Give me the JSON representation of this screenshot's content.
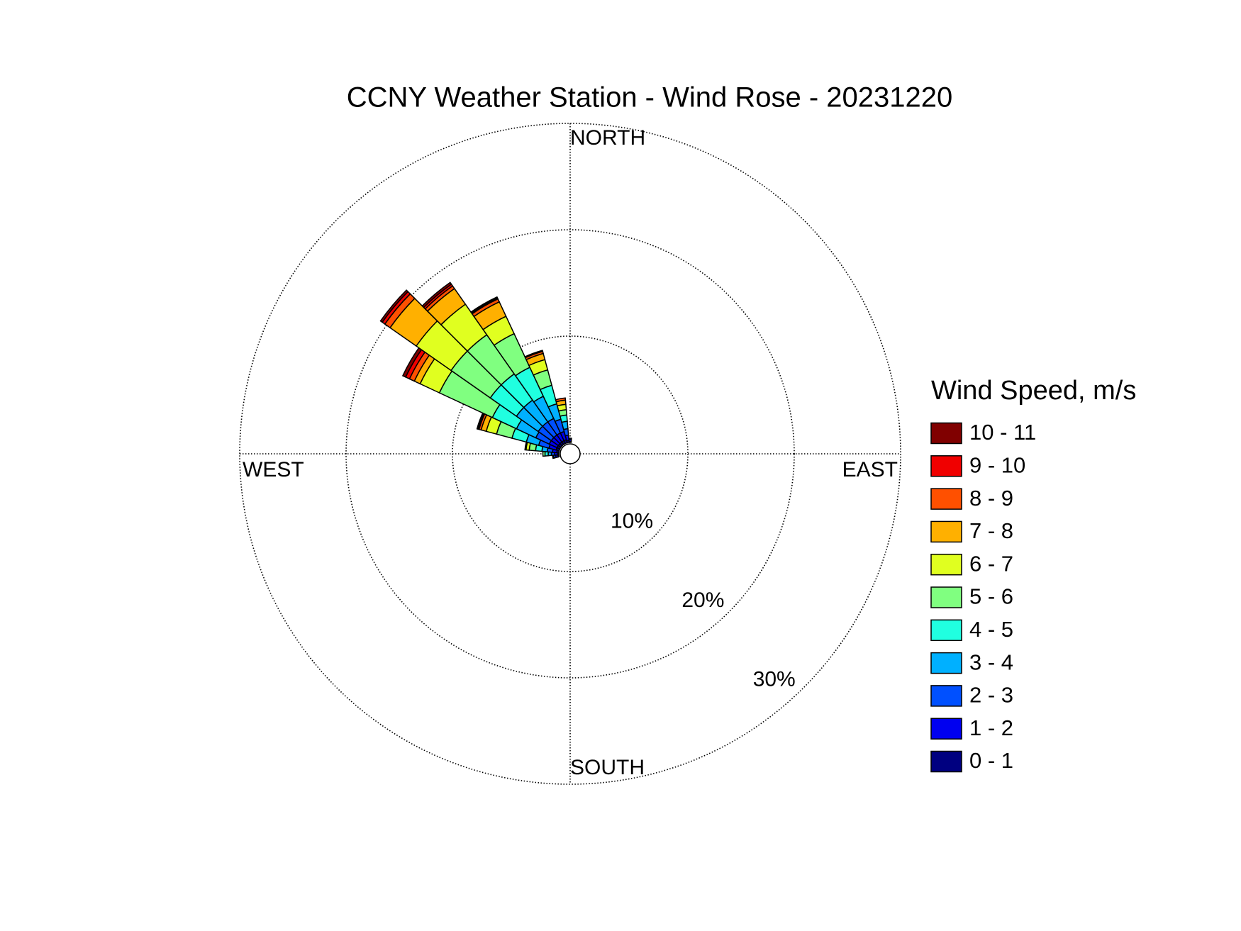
{
  "chart_data": {
    "type": "windrose",
    "title": "CCNY Weather Station - Wind Rose - 20231220",
    "direction_labels": [
      "NORTH",
      "EAST",
      "SOUTH",
      "WEST"
    ],
    "x": [
      0,
      260,
      270,
      280,
      290,
      300,
      310,
      320,
      330,
      340,
      350
    ],
    "rlim": [
      0,
      30
    ],
    "rticks": [
      {
        "value": 10,
        "label": "10%"
      },
      {
        "value": 20,
        "label": "20%"
      },
      {
        "value": 30,
        "label": "30%"
      }
    ],
    "grid": true,
    "legend_title": "Wind Speed, m/s",
    "series": [
      {
        "name": "0 - 1",
        "color": "#000080",
        "values": [
          0.1,
          0.1,
          0.1,
          0.2,
          0.3,
          0.3,
          0.3,
          0.3,
          0.3,
          0.3,
          0.2
        ]
      },
      {
        "name": "1 - 2",
        "color": "#0000f0",
        "values": [
          0.2,
          0.2,
          0.3,
          0.4,
          0.7,
          0.8,
          0.8,
          0.8,
          0.8,
          0.8,
          0.5
        ]
      },
      {
        "name": "2 - 3",
        "color": "#0050ff",
        "values": [
          0.1,
          0.2,
          0.3,
          0.5,
          1.0,
          1.4,
          1.5,
          1.5,
          1.5,
          1.2,
          0.6
        ]
      },
      {
        "name": "3 - 4",
        "color": "#00b0ff",
        "values": [
          0,
          0.1,
          0.3,
          0.5,
          1.2,
          2.0,
          2.5,
          2.5,
          2.3,
          1.5,
          0.7
        ]
      },
      {
        "name": "4 - 5",
        "color": "#20ffe0",
        "values": [
          0,
          0,
          0.3,
          0.6,
          1.4,
          2.5,
          3.0,
          3.0,
          3.0,
          1.8,
          0.6
        ]
      },
      {
        "name": "5 - 6",
        "color": "#80ff80",
        "values": [
          0,
          0,
          0.2,
          0.6,
          1.5,
          5.5,
          4.5,
          4.5,
          3.5,
          1.5,
          0.5
        ]
      },
      {
        "name": "6 - 7",
        "color": "#e0ff20",
        "values": [
          0,
          0,
          0,
          0.3,
          1.0,
          2.0,
          4.0,
          3.5,
          1.8,
          1.0,
          0.5
        ]
      },
      {
        "name": "7 - 8",
        "color": "#ffb000",
        "values": [
          0,
          0,
          0,
          0.1,
          0.5,
          0.6,
          3.0,
          1.8,
          1.5,
          0.6,
          0.4
        ]
      },
      {
        "name": "8 - 9",
        "color": "#ff5000",
        "values": [
          0,
          0,
          0,
          0,
          0.2,
          0.5,
          0.6,
          0.3,
          0.3,
          0.2,
          0.2
        ]
      },
      {
        "name": "9 - 10",
        "color": "#f00000",
        "values": [
          0,
          0,
          0,
          0,
          0.1,
          0.4,
          0.3,
          0.2,
          0.1,
          0.1,
          0
        ]
      },
      {
        "name": "10 - 11",
        "color": "#800000",
        "values": [
          0,
          0,
          0,
          0,
          0.1,
          0.3,
          0.2,
          0.2,
          0.1,
          0,
          0
        ]
      }
    ]
  }
}
